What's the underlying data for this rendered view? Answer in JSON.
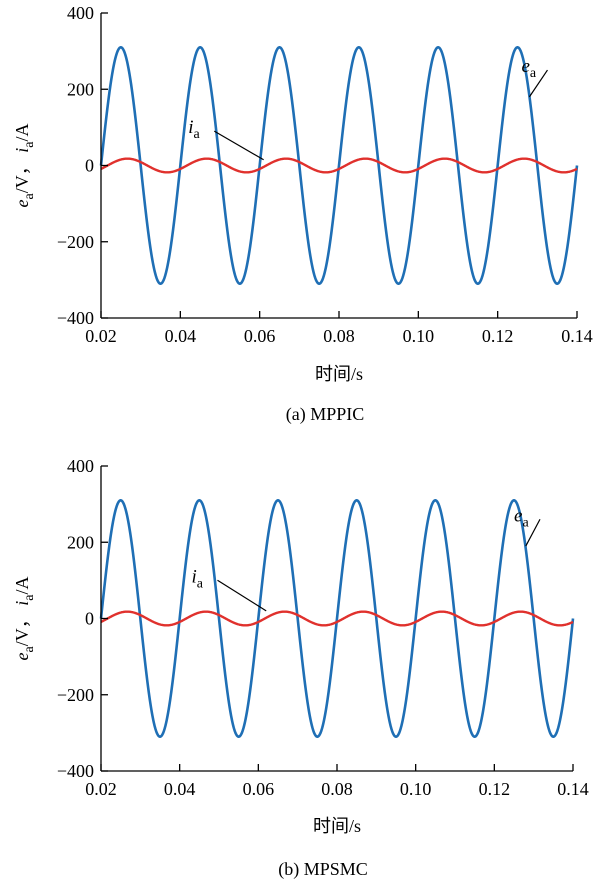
{
  "chart_data": [
    {
      "type": "line",
      "caption": "(a) MPPIC",
      "xlabel": "时间/s",
      "ylabel": "e_a/V， i_a/A",
      "xlim": [
        0.02,
        0.14
      ],
      "ylim": [
        -400,
        400
      ],
      "x_ticks": [
        "0.02",
        "0.04",
        "0.06",
        "0.08",
        "0.10",
        "0.12",
        "0.14"
      ],
      "y_ticks": [
        "400",
        "200",
        "0",
        "−200",
        "−400"
      ],
      "grid": false,
      "series": [
        {
          "name": "e_a",
          "color": "#1f6fb5",
          "amplitude": 310,
          "frequency_hz": 50,
          "phase_deg": 0,
          "x_start": 0.02,
          "x_end": 0.14
        },
        {
          "name": "i_a",
          "color": "#e0312d",
          "amplitude": 18,
          "frequency_hz": 50,
          "phase_deg": -30,
          "x_start": 0.02,
          "x_end": 0.14
        }
      ],
      "annotations": [
        {
          "text": "e",
          "sub": "a",
          "points_to": "e_a",
          "at": [
            0.126,
            245
          ],
          "target": [
            0.128,
            180
          ]
        },
        {
          "text": "i",
          "sub": "a",
          "points_to": "i_a",
          "at": [
            0.042,
            85
          ],
          "target": [
            0.061,
            15
          ]
        }
      ]
    },
    {
      "type": "line",
      "caption": "(b) MPSMC",
      "xlabel": "时间/s",
      "ylabel": "e_a/V， i_a/A",
      "xlim": [
        0.02,
        0.14
      ],
      "ylim": [
        -400,
        400
      ],
      "x_ticks": [
        "0.02",
        "0.04",
        "0.06",
        "0.08",
        "0.10",
        "0.12",
        "0.14"
      ],
      "y_ticks": [
        "400",
        "200",
        "0",
        "−200",
        "−400"
      ],
      "grid": false,
      "series": [
        {
          "name": "e_a",
          "color": "#1f6fb5",
          "amplitude": 310,
          "frequency_hz": 50,
          "phase_deg": 0,
          "x_start": 0.02,
          "x_end": 0.14
        },
        {
          "name": "i_a",
          "color": "#e0312d",
          "amplitude": 18,
          "frequency_hz": 50,
          "phase_deg": -30,
          "x_start": 0.02,
          "x_end": 0.14
        }
      ],
      "annotations": [
        {
          "text": "e",
          "sub": "a",
          "points_to": "e_a",
          "at": [
            0.125,
            255
          ],
          "target": [
            0.128,
            190
          ]
        },
        {
          "text": "i",
          "sub": "a",
          "points_to": "i_a",
          "at": [
            0.043,
            95
          ],
          "target": [
            0.062,
            20
          ]
        }
      ]
    }
  ]
}
